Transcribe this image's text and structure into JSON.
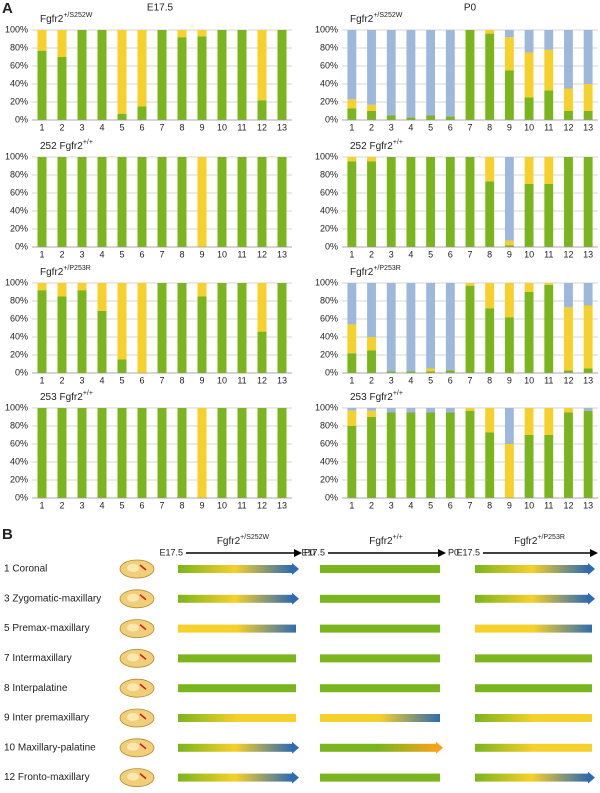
{
  "panel_labels": [
    "A",
    "B"
  ],
  "column_titles": [
    "E17.5",
    "P0"
  ],
  "chart_data": [
    {
      "type": "stacked_bar",
      "title": {
        "text": "Fgfr2",
        "sup": "+/S252W"
      },
      "categories": [
        "1",
        "2",
        "3",
        "4",
        "5",
        "6",
        "7",
        "8",
        "9",
        "10",
        "11",
        "12",
        "13"
      ],
      "series": [
        {
          "color": "#7ab51d",
          "values": [
            77,
            70,
            100,
            100,
            7,
            15,
            100,
            92,
            93,
            100,
            100,
            22,
            100
          ]
        },
        {
          "color": "#f6d02b",
          "values": [
            23,
            30,
            0,
            0,
            93,
            85,
            0,
            8,
            7,
            0,
            0,
            78,
            0
          ]
        }
      ],
      "ylim": [
        0,
        100
      ],
      "yticks": [
        {
          "value": 0,
          "label": "0%"
        },
        {
          "value": 20,
          "label": "20%"
        },
        {
          "value": 40,
          "label": "40%"
        },
        {
          "value": 60,
          "label": "60%"
        },
        {
          "value": 80,
          "label": "80%"
        },
        {
          "value": 100,
          "label": "100%"
        }
      ],
      "grid": true
    },
    {
      "type": "stacked_bar",
      "title": {
        "text": "Fgfr2",
        "sup": "+/S252W"
      },
      "categories": [
        "1",
        "2",
        "3",
        "4",
        "5",
        "6",
        "7",
        "8",
        "9",
        "10",
        "11",
        "12",
        "13"
      ],
      "series": [
        {
          "color": "#7ab51d",
          "values": [
            13,
            10,
            5,
            3,
            5,
            4,
            100,
            96,
            55,
            25,
            33,
            10,
            10
          ]
        },
        {
          "color": "#f6d02b",
          "values": [
            10,
            7,
            0,
            0,
            0,
            0,
            0,
            4,
            37,
            50,
            45,
            25,
            30
          ]
        },
        {
          "color": "#9db8da",
          "values": [
            77,
            83,
            95,
            97,
            95,
            96,
            0,
            0,
            8,
            25,
            22,
            65,
            60
          ]
        }
      ],
      "ylim": [
        0,
        100
      ],
      "yticks": [
        {
          "value": 0,
          "label": "0%"
        },
        {
          "value": 20,
          "label": "20%"
        },
        {
          "value": 40,
          "label": "40%"
        },
        {
          "value": 60,
          "label": "60%"
        },
        {
          "value": 80,
          "label": "80%"
        },
        {
          "value": 100,
          "label": "100%"
        }
      ],
      "grid": true
    },
    {
      "type": "stacked_bar",
      "title": {
        "text": "252 Fgfr2",
        "sup": "+/+"
      },
      "categories": [
        "1",
        "2",
        "3",
        "4",
        "5",
        "6",
        "7",
        "8",
        "9",
        "10",
        "11",
        "12",
        "13"
      ],
      "series": [
        {
          "color": "#7ab51d",
          "values": [
            100,
            100,
            100,
            100,
            100,
            100,
            100,
            100,
            0,
            100,
            100,
            100,
            100
          ]
        },
        {
          "color": "#f6d02b",
          "values": [
            0,
            0,
            0,
            0,
            0,
            0,
            0,
            0,
            100,
            0,
            0,
            0,
            0
          ]
        }
      ],
      "ylim": [
        0,
        100
      ],
      "yticks": [
        {
          "value": 0,
          "label": "0%"
        },
        {
          "value": 20,
          "label": "20%"
        },
        {
          "value": 40,
          "label": "40%"
        },
        {
          "value": 60,
          "label": "60%"
        },
        {
          "value": 80,
          "label": "80%"
        },
        {
          "value": 100,
          "label": "100%"
        }
      ],
      "grid": true
    },
    {
      "type": "stacked_bar",
      "title": {
        "text": "252 Fgfr2",
        "sup": "+/+"
      },
      "categories": [
        "1",
        "2",
        "3",
        "4",
        "5",
        "6",
        "7",
        "8",
        "9",
        "10",
        "11",
        "12",
        "13"
      ],
      "series": [
        {
          "color": "#7ab51d",
          "values": [
            95,
            95,
            100,
            100,
            100,
            100,
            100,
            73,
            2,
            70,
            70,
            100,
            100
          ]
        },
        {
          "color": "#f6d02b",
          "values": [
            5,
            5,
            0,
            0,
            0,
            0,
            0,
            27,
            5,
            30,
            30,
            0,
            0
          ]
        },
        {
          "color": "#9db8da",
          "values": [
            0,
            0,
            0,
            0,
            0,
            0,
            0,
            0,
            93,
            0,
            0,
            0,
            0
          ]
        }
      ],
      "ylim": [
        0,
        100
      ],
      "yticks": [
        {
          "value": 0,
          "label": "0%"
        },
        {
          "value": 20,
          "label": "20%"
        },
        {
          "value": 40,
          "label": "40%"
        },
        {
          "value": 60,
          "label": "60%"
        },
        {
          "value": 80,
          "label": "80%"
        },
        {
          "value": 100,
          "label": "100%"
        }
      ],
      "grid": true
    },
    {
      "type": "stacked_bar",
      "title": {
        "text": "Fgfr2",
        "sup": "+/P253R"
      },
      "categories": [
        "1",
        "2",
        "3",
        "4",
        "5",
        "6",
        "7",
        "8",
        "9",
        "10",
        "11",
        "12",
        "13"
      ],
      "series": [
        {
          "color": "#7ab51d",
          "values": [
            92,
            85,
            92,
            69,
            15,
            0,
            100,
            100,
            85,
            100,
            100,
            46,
            100
          ]
        },
        {
          "color": "#f6d02b",
          "values": [
            8,
            15,
            8,
            31,
            85,
            100,
            0,
            0,
            15,
            0,
            0,
            54,
            0
          ]
        }
      ],
      "ylim": [
        0,
        100
      ],
      "yticks": [
        {
          "value": 0,
          "label": "0%"
        },
        {
          "value": 20,
          "label": "20%"
        },
        {
          "value": 40,
          "label": "40%"
        },
        {
          "value": 60,
          "label": "60%"
        },
        {
          "value": 80,
          "label": "80%"
        },
        {
          "value": 100,
          "label": "100%"
        }
      ],
      "grid": true
    },
    {
      "type": "stacked_bar",
      "title": {
        "text": "Fgfr2",
        "sup": "+/P253R"
      },
      "categories": [
        "1",
        "2",
        "3",
        "4",
        "5",
        "6",
        "7",
        "8",
        "9",
        "10",
        "11",
        "12",
        "13"
      ],
      "series": [
        {
          "color": "#7ab51d",
          "values": [
            22,
            25,
            2,
            2,
            2,
            3,
            97,
            72,
            62,
            90,
            98,
            3,
            5
          ]
        },
        {
          "color": "#f6d02b",
          "values": [
            32,
            15,
            0,
            0,
            3,
            0,
            3,
            28,
            38,
            10,
            2,
            70,
            70
          ]
        },
        {
          "color": "#9db8da",
          "values": [
            46,
            60,
            98,
            98,
            95,
            97,
            0,
            0,
            0,
            0,
            0,
            27,
            25
          ]
        }
      ],
      "ylim": [
        0,
        100
      ],
      "yticks": [
        {
          "value": 0,
          "label": "0%"
        },
        {
          "value": 20,
          "label": "20%"
        },
        {
          "value": 40,
          "label": "40%"
        },
        {
          "value": 60,
          "label": "60%"
        },
        {
          "value": 80,
          "label": "80%"
        },
        {
          "value": 100,
          "label": "100%"
        }
      ],
      "grid": true
    },
    {
      "type": "stacked_bar",
      "title": {
        "text": "253 Fgfr2",
        "sup": "+/+"
      },
      "categories": [
        "1",
        "2",
        "3",
        "4",
        "5",
        "6",
        "7",
        "8",
        "9",
        "10",
        "11",
        "12",
        "13"
      ],
      "series": [
        {
          "color": "#7ab51d",
          "values": [
            100,
            100,
            100,
            100,
            100,
            100,
            100,
            100,
            0,
            100,
            100,
            100,
            100
          ]
        },
        {
          "color": "#f6d02b",
          "values": [
            0,
            0,
            0,
            0,
            0,
            0,
            0,
            0,
            100,
            0,
            0,
            0,
            0
          ]
        }
      ],
      "ylim": [
        0,
        100
      ],
      "yticks": [
        {
          "value": 0,
          "label": "0%"
        },
        {
          "value": 20,
          "label": "20%"
        },
        {
          "value": 40,
          "label": "40%"
        },
        {
          "value": 60,
          "label": "60%"
        },
        {
          "value": 80,
          "label": "80%"
        },
        {
          "value": 100,
          "label": "100%"
        }
      ],
      "grid": true
    },
    {
      "type": "stacked_bar",
      "title": {
        "text": "253 Fgfr2",
        "sup": "+/+"
      },
      "categories": [
        "1",
        "2",
        "3",
        "4",
        "5",
        "6",
        "7",
        "8",
        "9",
        "10",
        "11",
        "12",
        "13"
      ],
      "series": [
        {
          "color": "#7ab51d",
          "values": [
            80,
            90,
            95,
            95,
            95,
            95,
            97,
            73,
            0,
            70,
            70,
            95,
            97
          ]
        },
        {
          "color": "#f6d02b",
          "values": [
            17,
            7,
            0,
            0,
            0,
            0,
            3,
            27,
            60,
            30,
            30,
            5,
            0
          ]
        },
        {
          "color": "#9db8da",
          "values": [
            3,
            3,
            5,
            5,
            5,
            5,
            0,
            0,
            40,
            0,
            0,
            0,
            3
          ]
        }
      ],
      "ylim": [
        0,
        100
      ],
      "yticks": [
        {
          "value": 0,
          "label": "0%"
        },
        {
          "value": 20,
          "label": "20%"
        },
        {
          "value": 40,
          "label": "40%"
        },
        {
          "value": 60,
          "label": "60%"
        },
        {
          "value": 80,
          "label": "80%"
        },
        {
          "value": 100,
          "label": "100%"
        }
      ],
      "grid": true
    }
  ],
  "panel_b": {
    "start_label": "E17.5",
    "end_label": "P0",
    "genotypes": [
      {
        "text": "Fgfr2",
        "sup": "+/S252W"
      },
      {
        "text": "Fgfr2",
        "sup": "+/+"
      },
      {
        "text": "Fgfr2",
        "sup": "+/P253R"
      }
    ],
    "rows": [
      {
        "label": "1 Coronal",
        "bars": [
          {
            "colors": [
              "#7ab51d",
              "#f6d02b",
              "#2f6bb0"
            ],
            "arrow": true
          },
          {
            "colors": [
              "#7ab51d",
              "#7ab51d"
            ],
            "arrow": false
          },
          {
            "colors": [
              "#7ab51d",
              "#f6d02b",
              "#2f6bb0"
            ],
            "arrow": true
          }
        ]
      },
      {
        "label": "3 Zygomatic-maxillary",
        "bars": [
          {
            "colors": [
              "#7ab51d",
              "#f6d02b",
              "#2f6bb0"
            ],
            "arrow": true
          },
          {
            "colors": [
              "#7ab51d",
              "#7ab51d"
            ],
            "arrow": false
          },
          {
            "colors": [
              "#7ab51d",
              "#f6d02b",
              "#2f6bb0"
            ],
            "arrow": true
          }
        ]
      },
      {
        "label": "5 Premax-maxillary",
        "bars": [
          {
            "colors": [
              "#f6d02b",
              "#f6d02b",
              "#2f6bb0"
            ],
            "arrow": false
          },
          {
            "colors": [
              "#7ab51d",
              "#7ab51d"
            ],
            "arrow": false
          },
          {
            "colors": [
              "#f6d02b",
              "#f6d02b",
              "#2f6bb0"
            ],
            "arrow": false
          }
        ]
      },
      {
        "label": "7 Intermaxillary",
        "bars": [
          {
            "colors": [
              "#7ab51d",
              "#7ab51d"
            ],
            "arrow": false
          },
          {
            "colors": [
              "#7ab51d",
              "#7ab51d"
            ],
            "arrow": false
          },
          {
            "colors": [
              "#7ab51d",
              "#7ab51d"
            ],
            "arrow": false
          }
        ]
      },
      {
        "label": "8 Interpalatine",
        "bars": [
          {
            "colors": [
              "#7ab51d",
              "#7ab51d"
            ],
            "arrow": false
          },
          {
            "colors": [
              "#7ab51d",
              "#7ab51d"
            ],
            "arrow": false
          },
          {
            "colors": [
              "#7ab51d",
              "#7ab51d"
            ],
            "arrow": false
          }
        ]
      },
      {
        "label": "9 Inter premaxillary",
        "bars": [
          {
            "colors": [
              "#7ab51d",
              "#f6d02b",
              "#f6d02b"
            ],
            "arrow": false
          },
          {
            "colors": [
              "#f6d02b",
              "#f6d02b",
              "#2f6bb0"
            ],
            "arrow": false
          },
          {
            "colors": [
              "#7ab51d",
              "#f6d02b",
              "#f6d02b"
            ],
            "arrow": false
          }
        ]
      },
      {
        "label": "10 Maxillary-palatine",
        "bars": [
          {
            "colors": [
              "#7ab51d",
              "#f6d02b",
              "#2f6bb0"
            ],
            "arrow": true
          },
          {
            "colors": [
              "#7ab51d",
              "#7ab51d",
              "#f7a21b"
            ],
            "arrow": true
          },
          {
            "colors": [
              "#7ab51d",
              "#f6d02b",
              "#f6d02b"
            ],
            "arrow": false
          }
        ]
      },
      {
        "label": "12 Fronto-maxillary",
        "bars": [
          {
            "colors": [
              "#7ab51d",
              "#f6d02b",
              "#2f6bb0"
            ],
            "arrow": true
          },
          {
            "colors": [
              "#7ab51d",
              "#7ab51d"
            ],
            "arrow": false
          },
          {
            "colors": [
              "#7ab51d",
              "#f6d02b",
              "#2f6bb0"
            ],
            "arrow": true
          }
        ]
      }
    ]
  }
}
